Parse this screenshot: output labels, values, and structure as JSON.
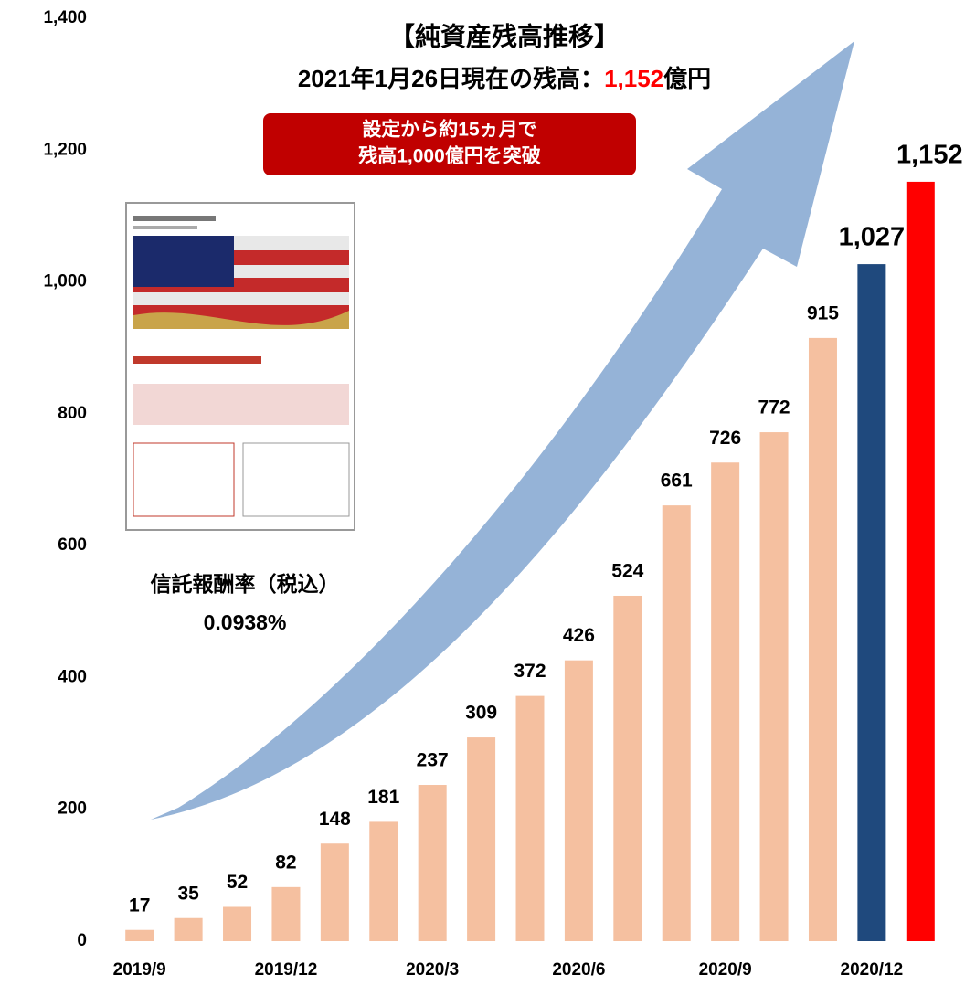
{
  "chart_data": {
    "type": "bar",
    "title": "【純資産残高推移】",
    "subtitle_parts": [
      "2021年1月26日現在の残高：",
      "1,152",
      "億円"
    ],
    "callout": [
      "設定から約15ヵ月で",
      "残高1,000億円を突破"
    ],
    "fee_label": "信託報酬率（税込）",
    "fee_value": "0.0938%",
    "categories": [
      "2019/9",
      null,
      null,
      "2019/12",
      null,
      null,
      "2020/3",
      null,
      null,
      "2020/6",
      null,
      null,
      "2020/9",
      null,
      null,
      "2020/12",
      null
    ],
    "values": [
      17,
      35,
      52,
      82,
      148,
      181,
      237,
      309,
      372,
      426,
      524,
      661,
      726,
      772,
      915,
      1027,
      1152
    ],
    "value_labels": [
      "17",
      "35",
      "52",
      "82",
      "148",
      "181",
      "237",
      "309",
      "372",
      "426",
      "524",
      "661",
      "726",
      "772",
      "915",
      "1,027",
      "1,152"
    ],
    "colors": [
      "#f5c0a0",
      "#f5c0a0",
      "#f5c0a0",
      "#f5c0a0",
      "#f5c0a0",
      "#f5c0a0",
      "#f5c0a0",
      "#f5c0a0",
      "#f5c0a0",
      "#f5c0a0",
      "#f5c0a0",
      "#f5c0a0",
      "#f5c0a0",
      "#f5c0a0",
      "#f5c0a0",
      "#1f497d",
      "#ff0000"
    ],
    "ylim": [
      0,
      1400
    ],
    "yticks": [
      0,
      200,
      400,
      600,
      800,
      {
        "value": 1000,
        "label": "1,000"
      },
      {
        "value": 1200,
        "label": "1,200"
      },
      {
        "value": 1400,
        "label": "1,400"
      }
    ],
    "grid": false
  }
}
